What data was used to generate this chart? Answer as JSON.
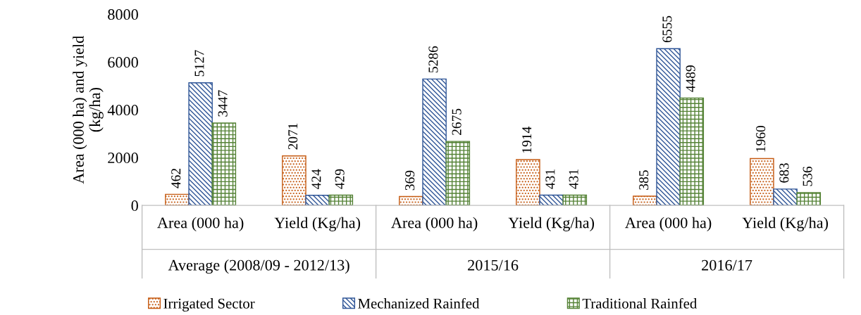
{
  "chart_data": {
    "type": "bar",
    "ylabel": "Area (000 ha) and yield\n(kg/ha)",
    "categories": [
      "Area (000 ha)",
      "Yield (Kg/ha)",
      "Area (000 ha)",
      "Yield (Kg/ha)",
      "Area (000 ha)",
      "Yield (Kg/ha)"
    ],
    "annotations": [
      "Average (2008/09 - 2012/13)",
      "2015/16",
      "2016/17"
    ],
    "series": [
      {
        "name": "Irrigated Sector",
        "color": "#c55a11",
        "values": [
          462,
          2071,
          369,
          1914,
          385,
          1960
        ]
      },
      {
        "name": "Mechanized Rainfed",
        "color": "#2f5597",
        "values": [
          5127,
          424,
          5286,
          431,
          6555,
          683
        ]
      },
      {
        "name": "Traditional Rainfed",
        "color": "#548235",
        "values": [
          3447,
          429,
          2675,
          431,
          4489,
          536
        ]
      }
    ],
    "ylim": [
      0,
      8000
    ],
    "yticks": [
      0,
      2000,
      4000,
      6000,
      8000
    ],
    "data_labels": true,
    "grid": false,
    "legend": "bottom"
  }
}
